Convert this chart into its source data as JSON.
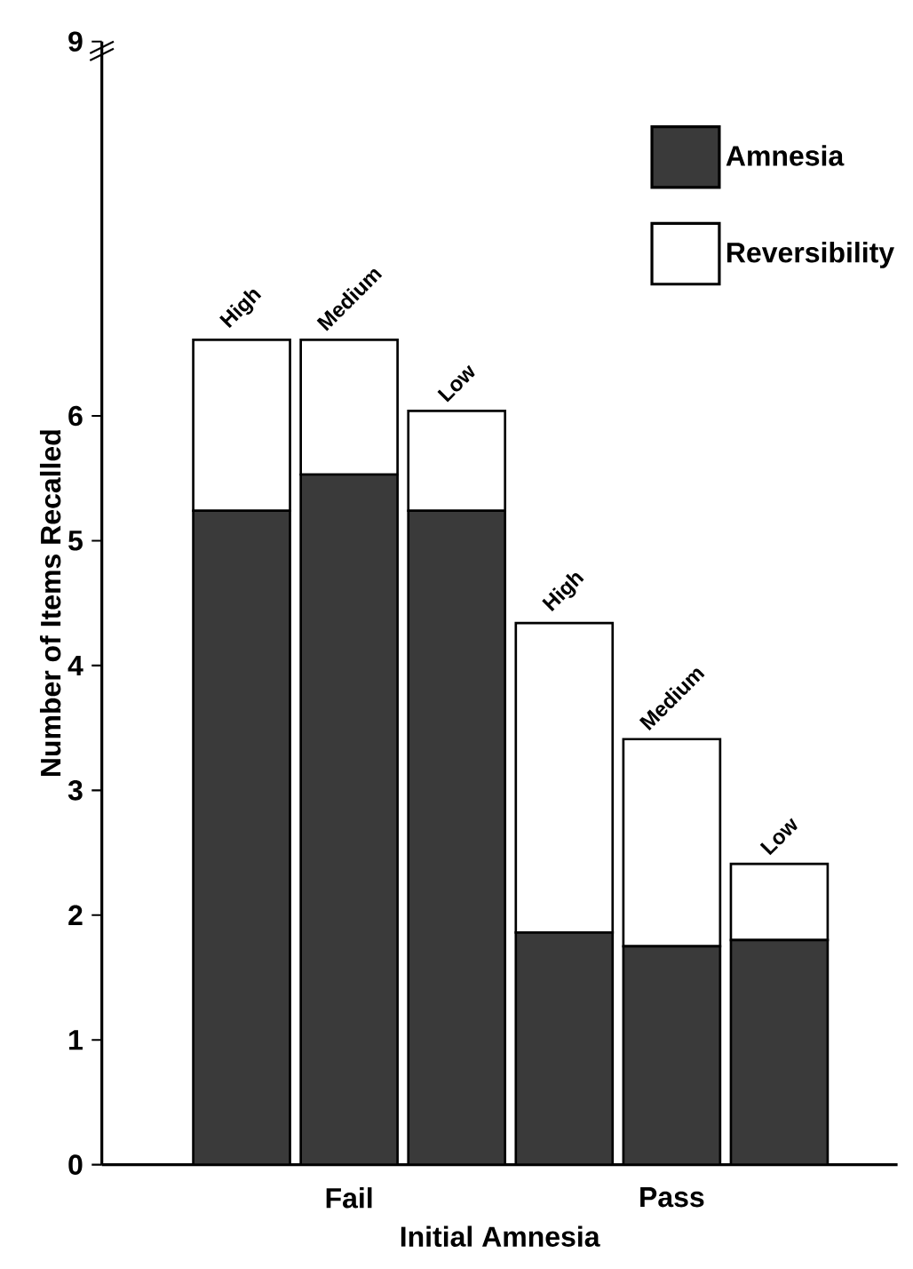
{
  "chart_data": {
    "type": "bar",
    "stacked": true,
    "xlabel": "Initial Amnesia",
    "ylabel": "Number of Items Recalled",
    "categories": [
      "High",
      "Medium",
      "Low",
      "High",
      "Medium",
      "Low"
    ],
    "series": [
      {
        "name": "Amnesia",
        "color": "#3a3a3a",
        "values": [
          5.24,
          5.53,
          5.24,
          1.86,
          1.75,
          1.8
        ]
      },
      {
        "name": "Reversibility",
        "color": "#ffffff",
        "values": [
          1.37,
          1.08,
          0.8,
          2.48,
          1.66,
          0.61
        ]
      }
    ],
    "ylim": [
      0,
      9
    ],
    "yticks": [
      0,
      1,
      2,
      3,
      4,
      5,
      6,
      9
    ],
    "annotations": [
      "Fail",
      "Pass"
    ],
    "legend": "top right",
    "grid": false
  }
}
